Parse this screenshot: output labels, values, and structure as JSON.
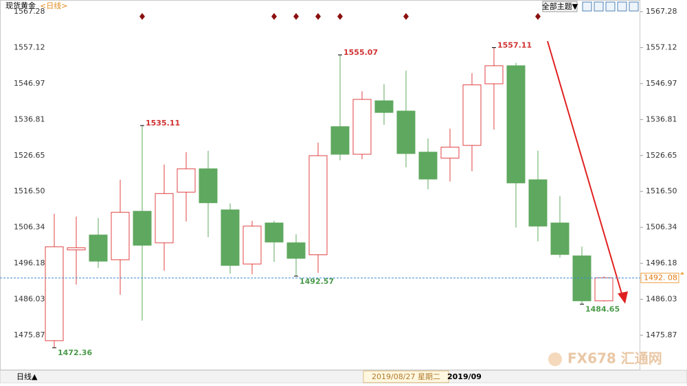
{
  "chart_data": {
    "type": "candlestick",
    "title": "现货黄金",
    "subtitle": "<日线>",
    "theme_button": "全部主题▼",
    "period_button": "日线▲",
    "ylim": [
      1466.0,
      1569.6
    ],
    "yticks": [
      1567.28,
      1557.12,
      1546.97,
      1536.81,
      1526.65,
      {
        "value": 1516.5,
        "label": "1516.50"
      },
      1506.34,
      1496.18,
      1486.03,
      1475.87
    ],
    "series": {
      "up_color": "#e04040",
      "down_color": "#5fa85f",
      "open": [
        1474.35,
        1500.0,
        1504.2,
        1497.2,
        1510.9,
        1502.0,
        1516.3,
        1522.9,
        1511.3,
        1496.0,
        1507.6,
        1502.0,
        1498.6,
        1534.8,
        1527.0,
        1542.1,
        1539.2,
        1527.6,
        1525.9,
        1529.5,
        1546.9,
        1552.0,
        1519.8,
        1507.6,
        1498.3,
        1485.6
      ],
      "high": [
        1510.17,
        1509.4,
        1509.0,
        1519.8,
        1535.11,
        1524.1,
        1527.6,
        1528.0,
        1513.1,
        1508.2,
        1508.2,
        1504.4,
        1530.3,
        1555.07,
        1544.8,
        1546.8,
        1550.6,
        1531.5,
        1534.2,
        1549.9,
        1557.11,
        1552.8,
        1528.0,
        1515.2,
        1500.9,
        1492.5
      ],
      "low": [
        1472.36,
        1490.2,
        1494.9,
        1487.3,
        1480.0,
        1494.1,
        1508.0,
        1503.6,
        1493.3,
        1493.1,
        1496.6,
        1492.57,
        1493.5,
        1525.3,
        1525.6,
        1535.3,
        1523.3,
        1517.1,
        1519.3,
        1522.2,
        1534.0,
        1506.3,
        1502.4,
        1497.8,
        1484.65,
        1485.4
      ],
      "close": [
        1500.87,
        1500.6,
        1496.8,
        1510.6,
        1501.3,
        1515.9,
        1522.9,
        1513.3,
        1495.6,
        1506.7,
        1502.2,
        1497.6,
        1526.6,
        1527.0,
        1542.5,
        1538.8,
        1527.2,
        1520.0,
        1529.0,
        1546.6,
        1552.0,
        1518.9,
        1506.7,
        1498.7,
        1485.6,
        1492.1
      ]
    },
    "high_labels": [
      4,
      13,
      20
    ],
    "low_labels": [
      0,
      11,
      24
    ],
    "event_markers": [
      4,
      10,
      11,
      12,
      13,
      16,
      22
    ],
    "current_price": {
      "value": 1492.08,
      "label": "1492. 08"
    },
    "x_labels": [
      {
        "label": "2019/08/27 星期二",
        "index": 16
      },
      {
        "label": "2019/09",
        "index": 18.5
      }
    ],
    "watermark": "FX678 汇通网"
  }
}
